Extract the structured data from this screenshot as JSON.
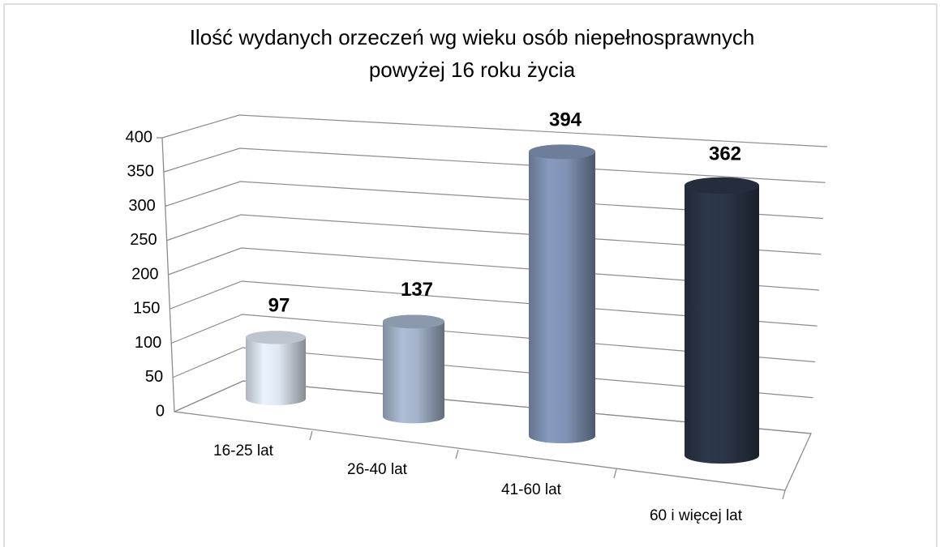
{
  "chart_data": {
    "type": "bar",
    "title": [
      "Ilość wydanych orzeczeń wg wieku osób niepełnosprawnych",
      "powyżej 16 roku życia"
    ],
    "categories": [
      "16-25 lat",
      "26-40 lat",
      "41-60 lat",
      "60 i więcej lat"
    ],
    "values": [
      97,
      137,
      394,
      362
    ],
    "colors": [
      "#dfe7f2",
      "#a4b4cb",
      "#8194b5",
      "#2b3547"
    ],
    "ylim": [
      0,
      400
    ],
    "yticks": [
      0,
      50,
      100,
      150,
      200,
      250,
      300,
      350,
      400
    ],
    "grid": true
  }
}
